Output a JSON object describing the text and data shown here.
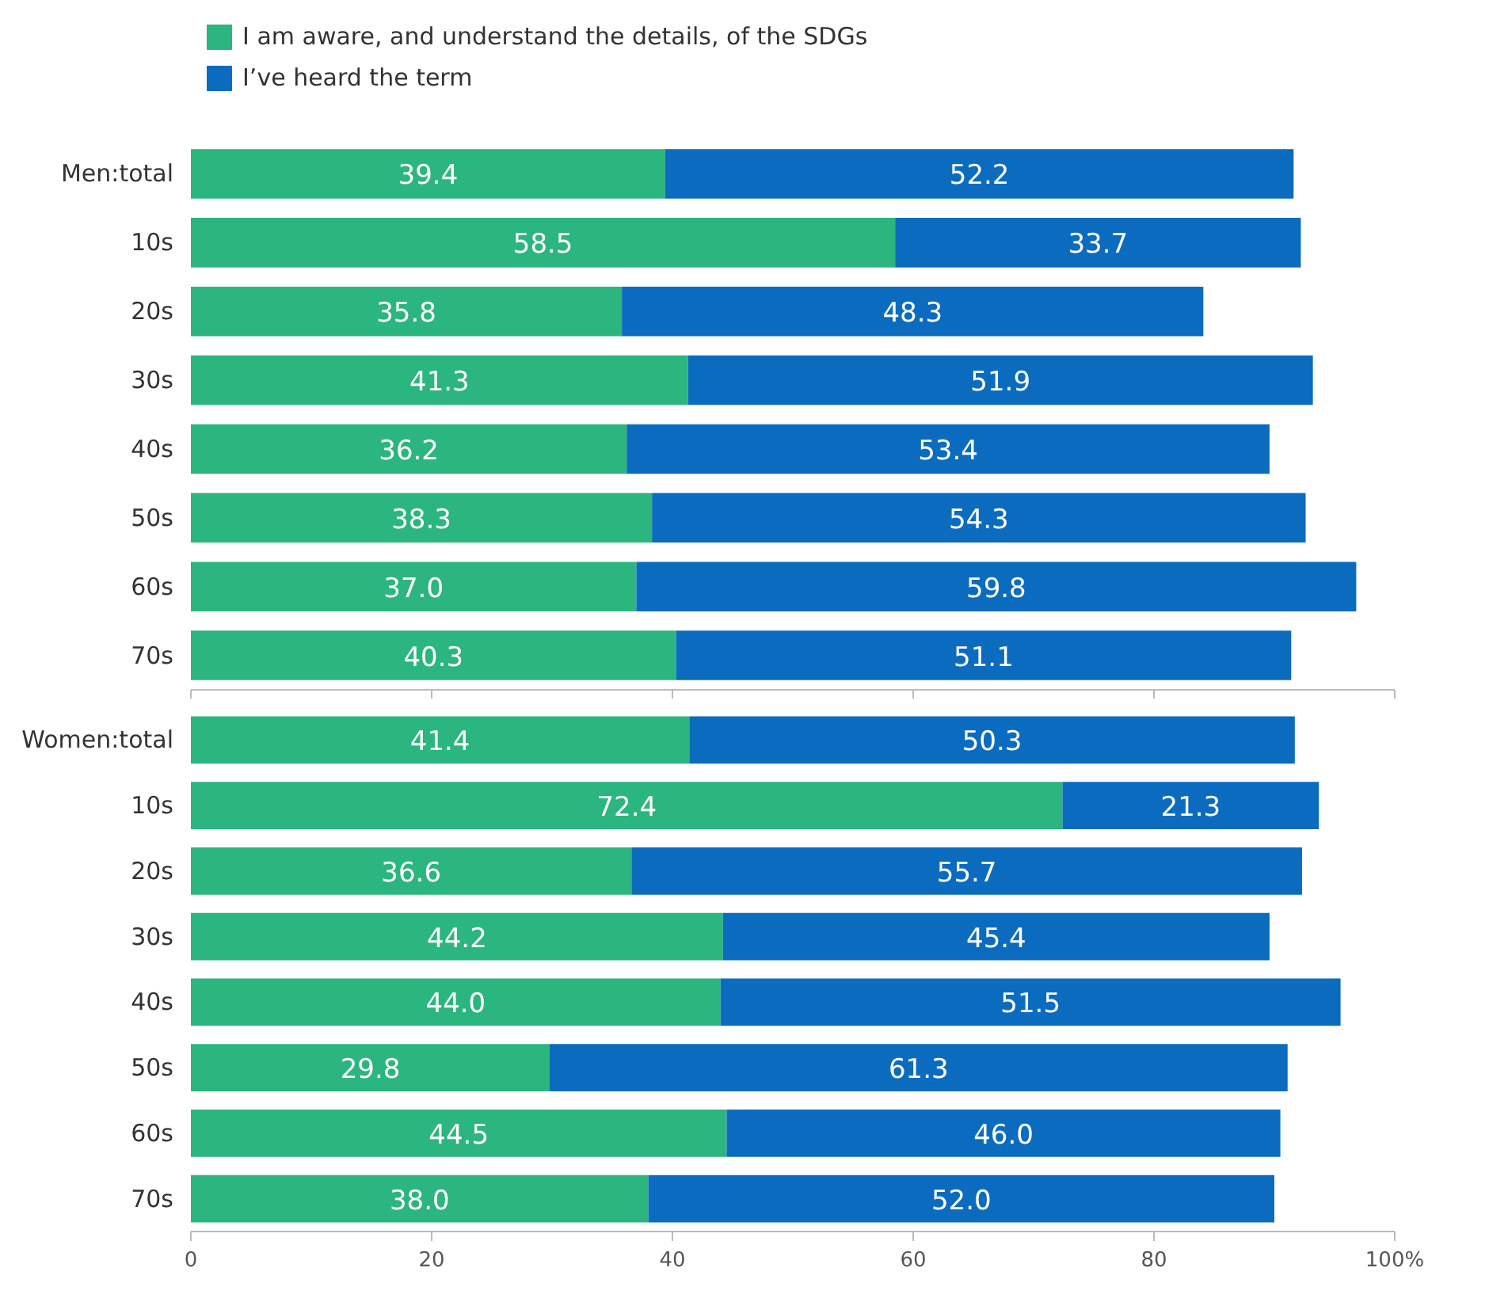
{
  "chart_data": [
    {
      "type": "bar",
      "orientation": "horizontal",
      "stacked": true,
      "legend": "top",
      "tick_labels": "y",
      "categories": [
        "Men:total",
        "10s",
        "20s",
        "30s",
        "40s",
        "50s",
        "60s",
        "70s"
      ],
      "xlim": [
        0,
        100
      ],
      "xticks": [
        0,
        20,
        40,
        60,
        80,
        100
      ],
      "series": [
        {
          "name": "I am aware, and understand the details, of the SDGs",
          "color": "#2bb57f",
          "values": [
            39.4,
            58.5,
            35.8,
            41.3,
            36.2,
            38.3,
            37.0,
            40.3
          ],
          "value_labels": [
            "39.4",
            "58.5",
            "35.8",
            "41.3",
            "36.2",
            "38.3",
            "37.0",
            "40.3"
          ]
        },
        {
          "name": "I’ve heard the term",
          "color": "#0b6cbf",
          "values": [
            52.2,
            33.7,
            48.3,
            51.9,
            53.4,
            54.3,
            59.8,
            51.1
          ],
          "value_labels": [
            "52.2",
            "33.7",
            "48.3",
            "51.9",
            "53.4",
            "54.3",
            "59.8",
            "51.1"
          ]
        }
      ]
    },
    {
      "type": "bar",
      "orientation": "horizontal",
      "stacked": true,
      "categories": [
        "Women:total",
        "10s",
        "20s",
        "30s",
        "40s",
        "50s",
        "60s",
        "70s"
      ],
      "xlim": [
        0,
        100
      ],
      "xticks": [
        0,
        20,
        40,
        60,
        80,
        {
          "value": 100,
          "label": "100%"
        }
      ],
      "series": [
        {
          "color": "#2bb57f",
          "values": [
            41.4,
            72.4,
            36.6,
            44.2,
            44.0,
            29.8,
            44.5,
            38.0
          ],
          "value_labels": [
            "41.4",
            "72.4",
            "36.6",
            "44.2",
            "44.0",
            "29.8",
            "44.5",
            "38.0"
          ]
        },
        {
          "color": "#0b6cbf",
          "values": [
            50.3,
            21.3,
            55.7,
            45.4,
            51.5,
            61.3,
            46.0,
            52.0
          ],
          "value_labels": [
            "50.3",
            "21.3",
            "55.7",
            "45.4",
            "51.5",
            "61.3",
            "46.0",
            "52.0"
          ]
        }
      ]
    }
  ]
}
